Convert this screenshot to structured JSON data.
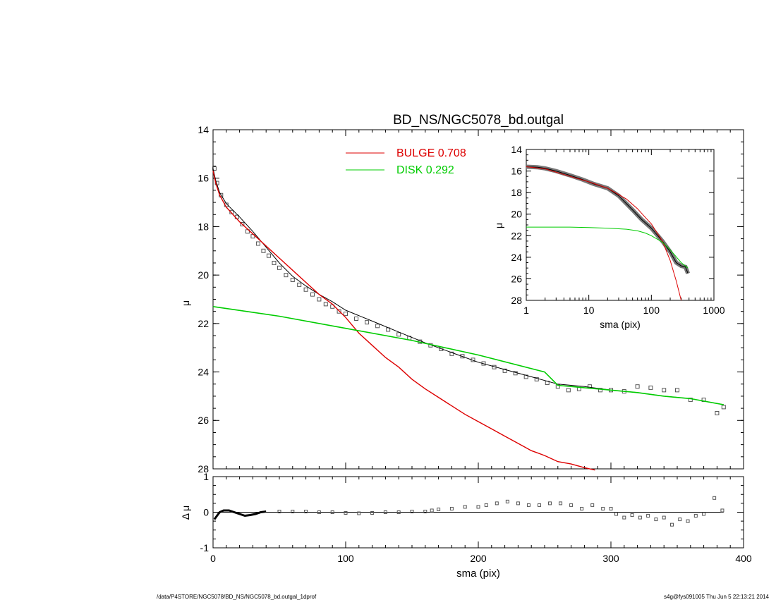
{
  "footer": {
    "path": "/data/P4STORE/NGC5078/BD_NS/NGC5078_bd.outgal_1dprof",
    "stamp": "s4g@fys091005  Thu Jun  5 22:13:21 2014"
  },
  "colors": {
    "bulge": "#dd0000",
    "disk": "#00cc00",
    "data": "#555555",
    "axis": "#000000"
  },
  "chart_data": [
    {
      "id": "main",
      "type": "line",
      "title": "BD_NS/NGC5078_bd.outgal",
      "xlabel": "",
      "ylabel": "μ",
      "xlim": [
        0,
        400
      ],
      "ylim": [
        28,
        14
      ],
      "y_reversed": true,
      "xticks": [],
      "yticks": [
        14,
        16,
        18,
        20,
        22,
        24,
        26,
        28
      ],
      "legend_position": "top",
      "legend": [
        {
          "name": "BULGE",
          "value": "0.708",
          "color": "#dd0000"
        },
        {
          "name": "DISK",
          "value": "0.292",
          "color": "#00cc00"
        }
      ],
      "series": [
        {
          "name": "BULGE",
          "color": "#dd0000",
          "points": [
            [
              0,
              15.7
            ],
            [
              2,
              16.2
            ],
            [
              5,
              16.7
            ],
            [
              10,
              17.2
            ],
            [
              20,
              17.8
            ],
            [
              30,
              18.3
            ],
            [
              40,
              18.8
            ],
            [
              50,
              19.3
            ],
            [
              60,
              19.8
            ],
            [
              70,
              20.3
            ],
            [
              80,
              20.8
            ],
            [
              90,
              21.2
            ],
            [
              100,
              21.75
            ],
            [
              110,
              22.4
            ],
            [
              120,
              22.9
            ],
            [
              130,
              23.4
            ],
            [
              140,
              23.8
            ],
            [
              150,
              24.3
            ],
            [
              160,
              24.7
            ],
            [
              170,
              25.05
            ],
            [
              180,
              25.4
            ],
            [
              190,
              25.75
            ],
            [
              200,
              26.05
            ],
            [
              210,
              26.35
            ],
            [
              220,
              26.65
            ],
            [
              230,
              26.95
            ],
            [
              240,
              27.25
            ],
            [
              250,
              27.45
            ],
            [
              260,
              27.7
            ],
            [
              270,
              27.8
            ],
            [
              280,
              27.95
            ],
            [
              288,
              28.05
            ]
          ]
        },
        {
          "name": "DISK",
          "color": "#00cc00",
          "points": [
            [
              0,
              21.3
            ],
            [
              50,
              21.7
            ],
            [
              100,
              22.2
            ],
            [
              150,
              22.7
            ],
            [
              200,
              23.3
            ],
            [
              250,
              24.0
            ],
            [
              260,
              24.55
            ],
            [
              280,
              24.65
            ],
            [
              300,
              24.75
            ],
            [
              320,
              24.85
            ],
            [
              340,
              25.0
            ],
            [
              360,
              25.1
            ],
            [
              385,
              25.35
            ]
          ]
        },
        {
          "name": "total",
          "color": "#000000",
          "points": [
            [
              0,
              15.6
            ],
            [
              2,
              16.1
            ],
            [
              5,
              16.6
            ],
            [
              10,
              17.05
            ],
            [
              20,
              17.6
            ],
            [
              30,
              18.2
            ],
            [
              40,
              18.85
            ],
            [
              50,
              19.5
            ],
            [
              60,
              20.05
            ],
            [
              70,
              20.45
            ],
            [
              80,
              20.8
            ],
            [
              90,
              21.1
            ],
            [
              100,
              21.45
            ],
            [
              120,
              21.9
            ],
            [
              140,
              22.35
            ],
            [
              160,
              22.8
            ],
            [
              180,
              23.2
            ],
            [
              200,
              23.6
            ],
            [
              220,
              23.9
            ],
            [
              240,
              24.2
            ],
            [
              260,
              24.5
            ],
            [
              280,
              24.6
            ],
            [
              300,
              24.75
            ],
            [
              320,
              24.85
            ],
            [
              340,
              25.0
            ],
            [
              360,
              25.1
            ],
            [
              385,
              25.35
            ]
          ]
        },
        {
          "name": "data",
          "color": "#555555",
          "points": [
            [
              1,
              15.6
            ],
            [
              3,
              16.2
            ],
            [
              6,
              16.7
            ],
            [
              10,
              17.1
            ],
            [
              14,
              17.4
            ],
            [
              18,
              17.6
            ],
            [
              22,
              17.9
            ],
            [
              26,
              18.2
            ],
            [
              30,
              18.4
            ],
            [
              34,
              18.7
            ],
            [
              38,
              19.0
            ],
            [
              42,
              19.2
            ],
            [
              46,
              19.5
            ],
            [
              50,
              19.7
            ],
            [
              55,
              20.0
            ],
            [
              60,
              20.2
            ],
            [
              65,
              20.4
            ],
            [
              70,
              20.6
            ],
            [
              75,
              20.8
            ],
            [
              80,
              21.0
            ],
            [
              85,
              21.2
            ],
            [
              90,
              21.3
            ],
            [
              95,
              21.5
            ],
            [
              100,
              21.6
            ],
            [
              108,
              21.8
            ],
            [
              116,
              21.95
            ],
            [
              124,
              22.1
            ],
            [
              132,
              22.25
            ],
            [
              140,
              22.45
            ],
            [
              148,
              22.6
            ],
            [
              156,
              22.75
            ],
            [
              164,
              22.9
            ],
            [
              172,
              23.05
            ],
            [
              180,
              23.25
            ],
            [
              188,
              23.35
            ],
            [
              196,
              23.5
            ],
            [
              204,
              23.65
            ],
            [
              212,
              23.8
            ],
            [
              220,
              23.95
            ],
            [
              228,
              24.05
            ],
            [
              236,
              24.2
            ],
            [
              244,
              24.3
            ],
            [
              252,
              24.45
            ],
            [
              260,
              24.6
            ],
            [
              268,
              24.75
            ],
            [
              276,
              24.7
            ],
            [
              284,
              24.6
            ],
            [
              292,
              24.75
            ],
            [
              300,
              24.75
            ],
            [
              310,
              24.8
            ],
            [
              320,
              24.6
            ],
            [
              330,
              24.65
            ],
            [
              340,
              24.75
            ],
            [
              350,
              24.75
            ],
            [
              360,
              25.15
            ],
            [
              370,
              25.15
            ],
            [
              380,
              25.7
            ],
            [
              385,
              25.45
            ]
          ]
        }
      ]
    },
    {
      "id": "inset",
      "type": "line",
      "title": "",
      "xlabel": "sma (pix)",
      "ylabel": "μ",
      "x_scale": "log",
      "xlim": [
        1,
        1000
      ],
      "ylim": [
        28,
        14
      ],
      "y_reversed": true,
      "xticks": [
        1,
        10,
        100,
        1000
      ],
      "yticks": [
        14,
        16,
        18,
        20,
        22,
        24,
        26,
        28
      ],
      "series": [
        {
          "name": "BULGE",
          "color": "#dd0000",
          "points": [
            [
              1,
              15.6
            ],
            [
              2,
              15.8
            ],
            [
              5,
              16.5
            ],
            [
              10,
              17.0
            ],
            [
              20,
              17.6
            ],
            [
              40,
              18.6
            ],
            [
              60,
              19.5
            ],
            [
              80,
              20.3
            ],
            [
              100,
              20.9
            ],
            [
              150,
              22.5
            ],
            [
              200,
              24.3
            ],
            [
              250,
              26.2
            ],
            [
              300,
              28.0
            ]
          ]
        },
        {
          "name": "DISK",
          "color": "#00cc00",
          "points": [
            [
              1,
              21.2
            ],
            [
              5,
              21.2
            ],
            [
              10,
              21.25
            ],
            [
              20,
              21.3
            ],
            [
              40,
              21.4
            ],
            [
              60,
              21.55
            ],
            [
              80,
              21.75
            ],
            [
              100,
              22.0
            ],
            [
              150,
              22.6
            ],
            [
              200,
              23.3
            ],
            [
              300,
              24.5
            ],
            [
              385,
              25.0
            ]
          ]
        },
        {
          "name": "data",
          "color": "#555555",
          "points": [
            [
              1,
              15.6
            ],
            [
              1.5,
              15.65
            ],
            [
              2,
              15.75
            ],
            [
              3,
              16.0
            ],
            [
              5,
              16.4
            ],
            [
              8,
              16.8
            ],
            [
              12,
              17.2
            ],
            [
              20,
              17.6
            ],
            [
              30,
              18.3
            ],
            [
              50,
              19.6
            ],
            [
              70,
              20.5
            ],
            [
              100,
              21.3
            ],
            [
              150,
              22.5
            ],
            [
              200,
              23.5
            ],
            [
              250,
              24.5
            ],
            [
              300,
              24.8
            ],
            [
              350,
              24.9
            ],
            [
              385,
              25.5
            ]
          ]
        }
      ]
    },
    {
      "id": "residual",
      "type": "scatter",
      "title": "",
      "xlabel": "sma (pix)",
      "ylabel": "Δ μ",
      "xlim": [
        0,
        400
      ],
      "ylim": [
        -1,
        1
      ],
      "xticks": [
        0,
        100,
        200,
        300,
        400
      ],
      "yticks": [
        -1,
        0,
        1
      ],
      "series": [
        {
          "name": "residual",
          "color": "#555555",
          "points": [
            [
              1,
              -0.2
            ],
            [
              3,
              -0.1
            ],
            [
              5,
              0.0
            ],
            [
              8,
              0.05
            ],
            [
              12,
              0.05
            ],
            [
              16,
              0.0
            ],
            [
              20,
              -0.05
            ],
            [
              24,
              -0.1
            ],
            [
              28,
              -0.08
            ],
            [
              32,
              -0.05
            ],
            [
              36,
              0.0
            ],
            [
              40,
              0.02
            ],
            [
              50,
              0.02
            ],
            [
              60,
              0.02
            ],
            [
              70,
              0.02
            ],
            [
              80,
              0.0
            ],
            [
              90,
              0.0
            ],
            [
              100,
              -0.02
            ],
            [
              110,
              -0.03
            ],
            [
              120,
              -0.02
            ],
            [
              130,
              0.0
            ],
            [
              140,
              0.0
            ],
            [
              150,
              0.02
            ],
            [
              160,
              0.02
            ],
            [
              165,
              0.05
            ],
            [
              170,
              0.08
            ],
            [
              180,
              0.1
            ],
            [
              190,
              0.15
            ],
            [
              200,
              0.15
            ],
            [
              206,
              0.2
            ],
            [
              214,
              0.25
            ],
            [
              222,
              0.3
            ],
            [
              230,
              0.25
            ],
            [
              238,
              0.2
            ],
            [
              246,
              0.2
            ],
            [
              254,
              0.25
            ],
            [
              262,
              0.25
            ],
            [
              270,
              0.2
            ],
            [
              278,
              0.1
            ],
            [
              286,
              0.2
            ],
            [
              294,
              0.1
            ],
            [
              300,
              0.1
            ],
            [
              304,
              -0.05
            ],
            [
              310,
              -0.15
            ],
            [
              316,
              -0.08
            ],
            [
              322,
              -0.15
            ],
            [
              328,
              -0.1
            ],
            [
              334,
              -0.2
            ],
            [
              340,
              -0.15
            ],
            [
              346,
              -0.35
            ],
            [
              352,
              -0.2
            ],
            [
              358,
              -0.25
            ],
            [
              364,
              -0.1
            ],
            [
              370,
              -0.05
            ],
            [
              378,
              0.4
            ],
            [
              384,
              0.05
            ]
          ]
        }
      ]
    }
  ]
}
